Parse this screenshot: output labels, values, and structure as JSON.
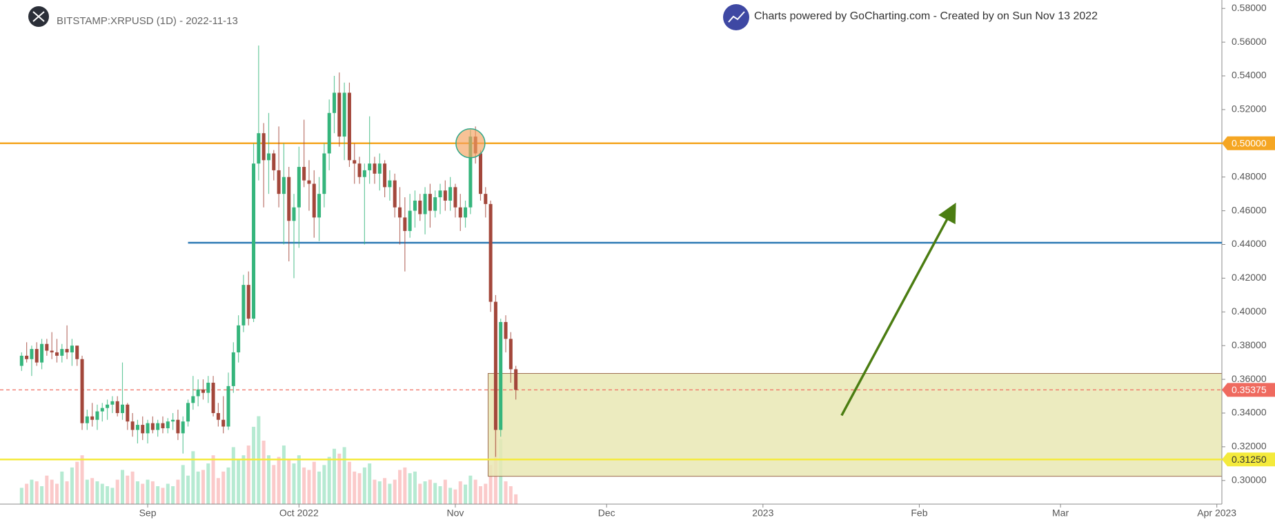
{
  "chart_data": {
    "type": "candlestick",
    "title": "BITSTAMP:XRPUSD (1D) - 2022-11-13",
    "subtitle": "Charts powered by GoCharting.com - Created by  on Sun Nov 13 2022",
    "colors": {
      "up": "#35b57c",
      "down": "#a3473b",
      "volume_up": "#b6ead2",
      "volume_down": "#fbcaca"
    },
    "ohlc": [
      [
        0.368,
        0.376,
        0.365,
        0.374
      ],
      [
        0.374,
        0.382,
        0.37,
        0.372
      ],
      [
        0.372,
        0.38,
        0.362,
        0.378
      ],
      [
        0.378,
        0.382,
        0.368,
        0.37
      ],
      [
        0.37,
        0.384,
        0.366,
        0.381
      ],
      [
        0.381,
        0.384,
        0.374,
        0.377
      ],
      [
        0.377,
        0.388,
        0.372,
        0.376
      ],
      [
        0.376,
        0.384,
        0.37,
        0.374
      ],
      [
        0.374,
        0.381,
        0.37,
        0.378
      ],
      [
        0.378,
        0.392,
        0.372,
        0.376
      ],
      [
        0.376,
        0.384,
        0.368,
        0.38
      ],
      [
        0.38,
        0.38,
        0.368,
        0.372
      ],
      [
        0.372,
        0.374,
        0.33,
        0.334
      ],
      [
        0.334,
        0.342,
        0.33,
        0.338
      ],
      [
        0.338,
        0.346,
        0.332,
        0.336
      ],
      [
        0.336,
        0.345,
        0.33,
        0.341
      ],
      [
        0.341,
        0.346,
        0.335,
        0.343
      ],
      [
        0.343,
        0.348,
        0.336,
        0.345
      ],
      [
        0.345,
        0.35,
        0.34,
        0.347
      ],
      [
        0.347,
        0.35,
        0.338,
        0.34
      ],
      [
        0.34,
        0.37,
        0.336,
        0.345
      ],
      [
        0.345,
        0.346,
        0.33,
        0.335
      ],
      [
        0.335,
        0.34,
        0.326,
        0.33
      ],
      [
        0.33,
        0.336,
        0.322,
        0.333
      ],
      [
        0.333,
        0.338,
        0.324,
        0.328
      ],
      [
        0.328,
        0.336,
        0.322,
        0.334
      ],
      [
        0.334,
        0.338,
        0.328,
        0.33
      ],
      [
        0.33,
        0.336,
        0.326,
        0.334
      ],
      [
        0.334,
        0.338,
        0.328,
        0.331
      ],
      [
        0.331,
        0.337,
        0.328,
        0.335
      ],
      [
        0.335,
        0.34,
        0.33,
        0.336
      ],
      [
        0.336,
        0.342,
        0.324,
        0.328
      ],
      [
        0.328,
        0.338,
        0.316,
        0.335
      ],
      [
        0.335,
        0.348,
        0.332,
        0.346
      ],
      [
        0.346,
        0.362,
        0.342,
        0.35
      ],
      [
        0.35,
        0.36,
        0.344,
        0.354
      ],
      [
        0.354,
        0.36,
        0.348,
        0.352
      ],
      [
        0.352,
        0.362,
        0.346,
        0.358
      ],
      [
        0.358,
        0.362,
        0.338,
        0.34
      ],
      [
        0.34,
        0.346,
        0.332,
        0.336
      ],
      [
        0.336,
        0.35,
        0.328,
        0.332
      ],
      [
        0.332,
        0.364,
        0.33,
        0.356
      ],
      [
        0.356,
        0.382,
        0.352,
        0.376
      ],
      [
        0.376,
        0.398,
        0.37,
        0.392
      ],
      [
        0.392,
        0.422,
        0.388,
        0.416
      ],
      [
        0.416,
        0.424,
        0.392,
        0.396
      ],
      [
        0.396,
        0.5,
        0.394,
        0.488
      ],
      [
        0.488,
        0.558,
        0.478,
        0.506
      ],
      [
        0.506,
        0.512,
        0.462,
        0.49
      ],
      [
        0.49,
        0.518,
        0.47,
        0.494
      ],
      [
        0.494,
        0.496,
        0.478,
        0.484
      ],
      [
        0.484,
        0.51,
        0.462,
        0.47
      ],
      [
        0.47,
        0.5,
        0.44,
        0.48
      ],
      [
        0.48,
        0.486,
        0.43,
        0.454
      ],
      [
        0.454,
        0.47,
        0.42,
        0.462
      ],
      [
        0.462,
        0.498,
        0.438,
        0.486
      ],
      [
        0.486,
        0.514,
        0.474,
        0.478
      ],
      [
        0.478,
        0.49,
        0.46,
        0.476
      ],
      [
        0.476,
        0.484,
        0.444,
        0.456
      ],
      [
        0.456,
        0.48,
        0.442,
        0.47
      ],
      [
        0.47,
        0.5,
        0.462,
        0.494
      ],
      [
        0.494,
        0.526,
        0.484,
        0.518
      ],
      [
        0.518,
        0.54,
        0.506,
        0.53
      ],
      [
        0.53,
        0.542,
        0.498,
        0.504
      ],
      [
        0.504,
        0.536,
        0.49,
        0.53
      ],
      [
        0.53,
        0.536,
        0.486,
        0.49
      ],
      [
        0.49,
        0.5,
        0.476,
        0.488
      ],
      [
        0.488,
        0.492,
        0.476,
        0.48
      ],
      [
        0.48,
        0.488,
        0.44,
        0.484
      ],
      [
        0.484,
        0.516,
        0.476,
        0.488
      ],
      [
        0.488,
        0.492,
        0.476,
        0.482
      ],
      [
        0.482,
        0.494,
        0.472,
        0.488
      ],
      [
        0.488,
        0.49,
        0.468,
        0.474
      ],
      [
        0.474,
        0.484,
        0.466,
        0.478
      ],
      [
        0.478,
        0.482,
        0.456,
        0.462
      ],
      [
        0.462,
        0.474,
        0.44,
        0.456
      ],
      [
        0.456,
        0.468,
        0.424,
        0.448
      ],
      [
        0.448,
        0.47,
        0.444,
        0.46
      ],
      [
        0.46,
        0.472,
        0.45,
        0.466
      ],
      [
        0.466,
        0.47,
        0.454,
        0.458
      ],
      [
        0.458,
        0.474,
        0.446,
        0.47
      ],
      [
        0.47,
        0.476,
        0.45,
        0.46
      ],
      [
        0.46,
        0.472,
        0.456,
        0.468
      ],
      [
        0.468,
        0.476,
        0.458,
        0.472
      ],
      [
        0.472,
        0.478,
        0.46,
        0.466
      ],
      [
        0.466,
        0.48,
        0.46,
        0.474
      ],
      [
        0.474,
        0.476,
        0.456,
        0.462
      ],
      [
        0.462,
        0.47,
        0.448,
        0.456
      ],
      [
        0.456,
        0.466,
        0.45,
        0.462
      ],
      [
        0.462,
        0.508,
        0.458,
        0.504
      ],
      [
        0.504,
        0.51,
        0.488,
        0.494
      ],
      [
        0.494,
        0.496,
        0.466,
        0.47
      ],
      [
        0.47,
        0.474,
        0.456,
        0.464
      ],
      [
        0.464,
        0.466,
        0.4,
        0.406
      ],
      [
        0.406,
        0.41,
        0.314,
        0.33
      ],
      [
        0.33,
        0.396,
        0.326,
        0.394
      ],
      [
        0.394,
        0.398,
        0.376,
        0.384
      ],
      [
        0.384,
        0.388,
        0.358,
        0.366
      ],
      [
        0.366,
        0.368,
        0.348,
        0.35375
      ]
    ],
    "volume": [
      20,
      25,
      30,
      28,
      22,
      35,
      30,
      25,
      40,
      28,
      45,
      52,
      60,
      30,
      32,
      28,
      25,
      22,
      20,
      30,
      42,
      35,
      40,
      28,
      25,
      30,
      28,
      22,
      20,
      25,
      22,
      30,
      48,
      35,
      65,
      40,
      42,
      50,
      60,
      32,
      40,
      45,
      70,
      55,
      60,
      72,
      95,
      108,
      78,
      60,
      48,
      58,
      72,
      55,
      50,
      60,
      45,
      42,
      52,
      40,
      48,
      58,
      68,
      62,
      70,
      52,
      40,
      38,
      45,
      50,
      30,
      28,
      32,
      25,
      30,
      42,
      45,
      38,
      40,
      25,
      28,
      30,
      26,
      22,
      30,
      20,
      18,
      28,
      24,
      35,
      30,
      22,
      25,
      48,
      100,
      80,
      28,
      22,
      12
    ],
    "xlim": [
      -1,
      238
    ],
    "xticks": [
      {
        "value": 25,
        "label": "Sep"
      },
      {
        "value": 55,
        "label": "Oct 2022"
      },
      {
        "value": 86,
        "label": "Nov"
      },
      {
        "value": 116,
        "label": "Dec"
      },
      {
        "value": 147,
        "label": "2023"
      },
      {
        "value": 178,
        "label": "Feb"
      },
      {
        "value": 206,
        "label": "Mar"
      },
      {
        "value": 237,
        "label": "Apr 2023"
      }
    ],
    "ylim": [
      0.286,
      0.585
    ],
    "yticks": [
      {
        "value": 0.3,
        "label": "0.30000"
      },
      {
        "value": 0.32,
        "label": "0.32000"
      },
      {
        "value": 0.34,
        "label": "0.34000"
      },
      {
        "value": 0.36,
        "label": "0.36000"
      },
      {
        "value": 0.38,
        "label": "0.38000"
      },
      {
        "value": 0.4,
        "label": "0.40000"
      },
      {
        "value": 0.42,
        "label": "0.42000"
      },
      {
        "value": 0.44,
        "label": "0.44000"
      },
      {
        "value": 0.46,
        "label": "0.46000"
      },
      {
        "value": 0.48,
        "label": "0.48000"
      },
      {
        "value": 0.5,
        "label": "0.50000"
      },
      {
        "value": 0.52,
        "label": "0.52000"
      },
      {
        "value": 0.54,
        "label": "0.54000"
      },
      {
        "value": 0.56,
        "label": "0.56000"
      },
      {
        "value": 0.58,
        "label": "0.58000"
      }
    ],
    "zone": {
      "x_from": 92.5,
      "y": [
        0.3025,
        0.3635
      ],
      "color": "#e9e7b4",
      "border": "#9c6b4e"
    },
    "levels": [
      {
        "value": 0.5,
        "label": "0.50000",
        "color": "#f5a623",
        "text_color": "#ffffff"
      },
      {
        "value": 0.441,
        "x_from": 33,
        "color": "#2a78b3"
      },
      {
        "value": 0.35375,
        "label": "0.35375",
        "color": "#ef6a5f",
        "text_color": "#ffffff",
        "dashed": true
      },
      {
        "value": 0.3125,
        "label": "0.31250",
        "color": "#f4ea3c",
        "text_color": "#333333"
      }
    ],
    "arrow": {
      "from": [
        162.6,
        0.3386
      ],
      "to": [
        184.6,
        0.461
      ],
      "color": "#4b7d12"
    },
    "marker_circle": {
      "x": 89,
      "y": 0.5,
      "color": "#f5a25d",
      "border": "#2fa88a"
    }
  }
}
